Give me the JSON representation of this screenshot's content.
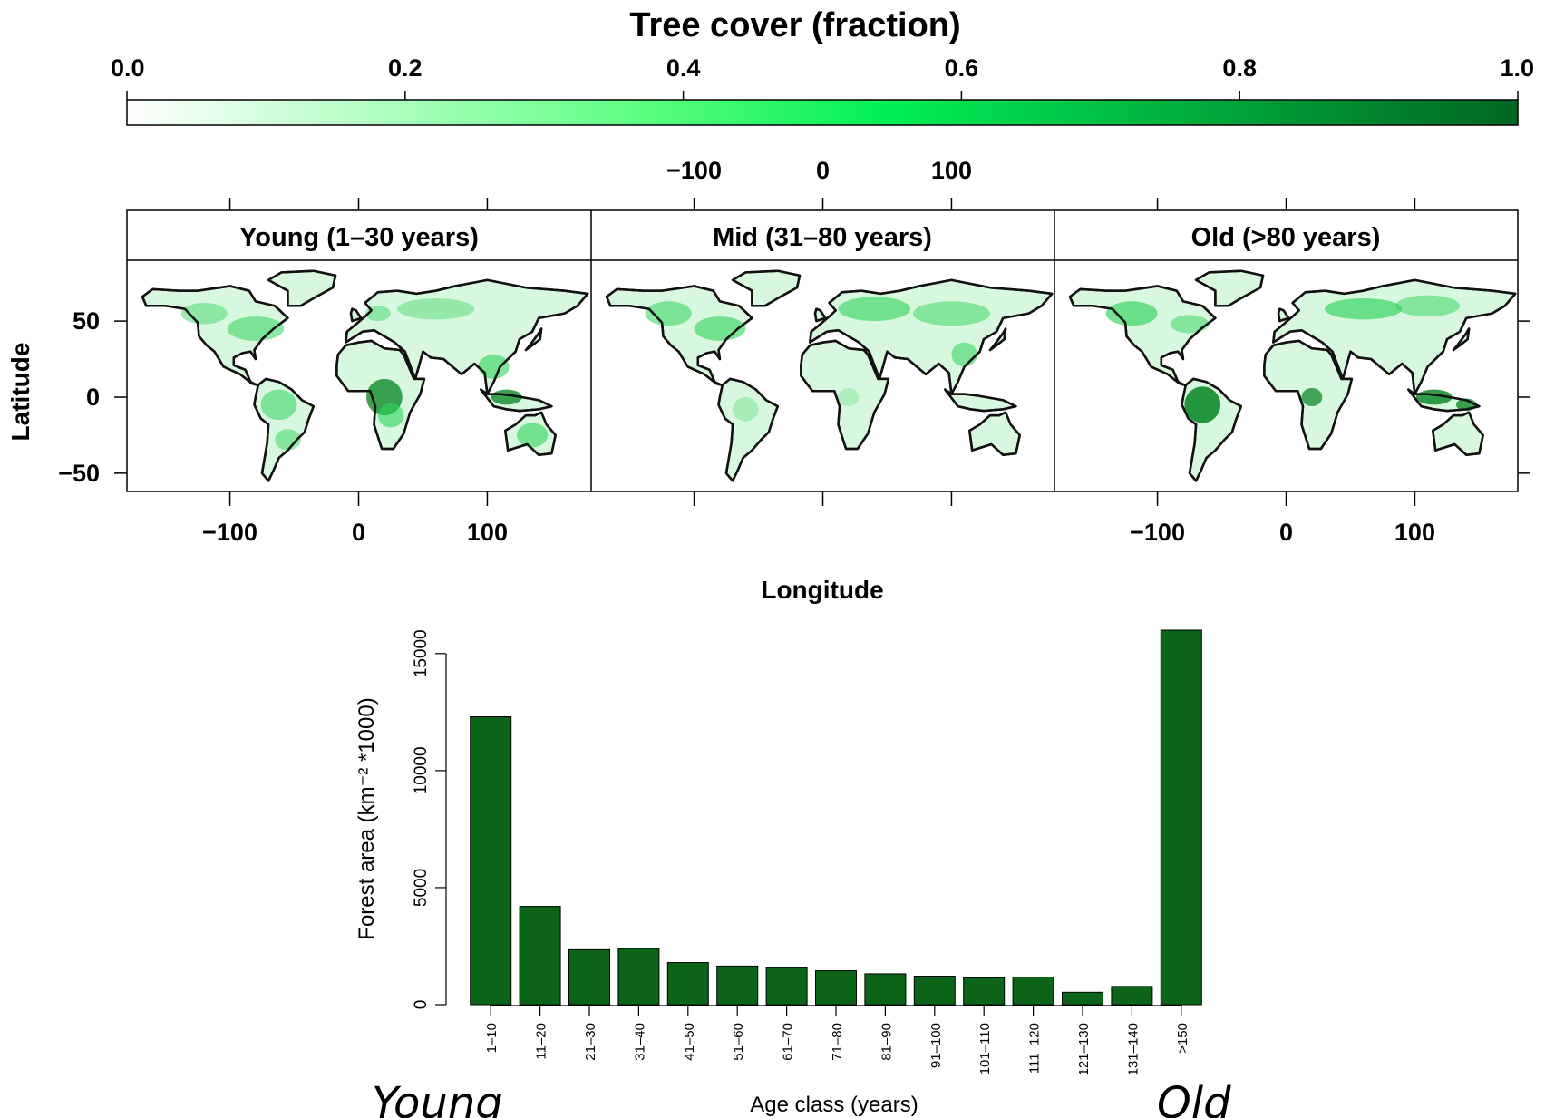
{
  "colorbar": {
    "title": "Tree cover (fraction)",
    "ticks": [
      "0.0",
      "0.2",
      "0.4",
      "0.6",
      "0.8",
      "1.0"
    ],
    "colors": [
      "#ffffff",
      "#33ff66",
      "#00e64d",
      "#006622"
    ]
  },
  "maps": {
    "panels": [
      {
        "label": "Young (1–30 years)"
      },
      {
        "label": "Mid (31–80 years)"
      },
      {
        "label": "Old (>80 years)"
      }
    ],
    "lon_ticks": [
      "−100",
      "0",
      "100"
    ],
    "lat_ticks": [
      "50",
      "0",
      "−50"
    ],
    "xlabel": "Longitude",
    "ylabel": "Latitude",
    "land_color": "#d8f7df",
    "forest_color": "#2fd35a"
  },
  "chart_data": {
    "type": "bar",
    "categories": [
      "1–10",
      "11–20",
      "21–30",
      "31–40",
      "41–50",
      "51–60",
      "61–70",
      "71–80",
      "81–90",
      "91–100",
      "101–110",
      "111–120",
      "121–130",
      "131–140",
      ">150"
    ],
    "values": [
      12300,
      4200,
      2350,
      2400,
      1800,
      1650,
      1580,
      1450,
      1320,
      1220,
      1150,
      1180,
      530,
      780,
      16000
    ],
    "ylim": [
      0,
      16000
    ],
    "yticks": [
      "0",
      "5000",
      "10000",
      "15000"
    ],
    "xlabel": "Age class (years)",
    "ylabel": "Forest area (km⁻² *1000)",
    "bar_color": "#0c6418"
  },
  "annotations": {
    "young": "Young",
    "old": "Old"
  }
}
